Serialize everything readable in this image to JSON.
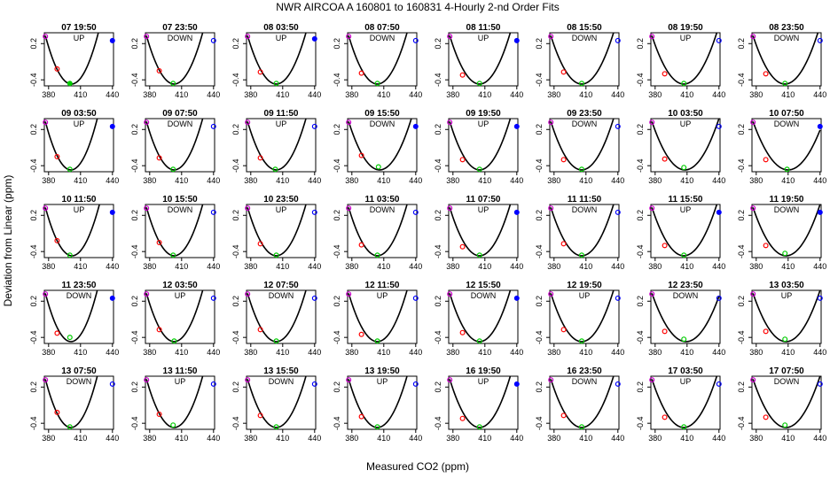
{
  "title": "NWR   AIRCOA A   160801 to 160831   4-Hourly 2-nd Order Fits",
  "xlabel": "Measured CO2 (ppm)",
  "ylabel": "Deviation from Linear (ppm)",
  "colors": {
    "curve": "#000000",
    "p1": "#cc00cc",
    "p2": "#ff0000",
    "p3": "#00cc00",
    "p4": "#0000ff"
  },
  "chart_data": {
    "type": "scatter",
    "layout": {
      "rows": 5,
      "cols": 8
    },
    "xlim": [
      376,
      441
    ],
    "ylim": [
      -0.5,
      0.38
    ],
    "xticks": [
      380,
      410,
      440
    ],
    "xtick_labels": [
      "380",
      "410",
      "440"
    ],
    "yticks": [
      -0.4,
      0.2
    ],
    "ytick_labels": [
      "-0.4",
      "0.2"
    ],
    "panels": [
      {
        "label": "07 19:50",
        "dir": "UP",
        "c": 401.5,
        "pts": [
          [
            377,
            0.32
          ],
          [
            388,
            -0.22
          ],
          [
            400,
            -0.46
          ],
          [
            440,
            0.25
          ]
        ],
        "filled": [
          false,
          false,
          true,
          true
        ]
      },
      {
        "label": "07 23:50",
        "dir": "DOWN",
        "c": 403,
        "pts": [
          [
            377,
            0.32
          ],
          [
            389,
            -0.25
          ],
          [
            402,
            -0.46
          ],
          [
            440,
            0.25
          ]
        ],
        "filled": [
          false,
          false,
          false,
          false
        ]
      },
      {
        "label": "08 03:50",
        "dir": "UP",
        "c": 404,
        "pts": [
          [
            377,
            0.32
          ],
          [
            389,
            -0.27
          ],
          [
            404,
            -0.46
          ],
          [
            440,
            0.28
          ]
        ],
        "filled": [
          false,
          false,
          false,
          true
        ]
      },
      {
        "label": "08 07:50",
        "dir": "DOWN",
        "c": 404,
        "pts": [
          [
            377,
            0.32
          ],
          [
            389,
            -0.29
          ],
          [
            404,
            -0.46
          ],
          [
            440,
            0.25
          ]
        ],
        "filled": [
          false,
          false,
          false,
          false
        ]
      },
      {
        "label": "08 11:50",
        "dir": "UP",
        "c": 405,
        "pts": [
          [
            377,
            0.32
          ],
          [
            389,
            -0.32
          ],
          [
            405,
            -0.46
          ],
          [
            440,
            0.25
          ]
        ],
        "filled": [
          false,
          false,
          false,
          true
        ]
      },
      {
        "label": "08 15:50",
        "dir": "DOWN",
        "c": 406,
        "pts": [
          [
            377,
            0.32
          ],
          [
            389,
            -0.27
          ],
          [
            406,
            -0.46
          ],
          [
            440,
            0.25
          ]
        ],
        "filled": [
          false,
          false,
          false,
          false
        ]
      },
      {
        "label": "08 19:50",
        "dir": "UP",
        "c": 407,
        "pts": [
          [
            377,
            0.32
          ],
          [
            389,
            -0.3
          ],
          [
            407,
            -0.46
          ],
          [
            440,
            0.25
          ]
        ],
        "filled": [
          false,
          false,
          false,
          false
        ]
      },
      {
        "label": "08 23:50",
        "dir": "DOWN",
        "c": 407,
        "pts": [
          [
            377,
            0.32
          ],
          [
            389,
            -0.3
          ],
          [
            407,
            -0.46
          ],
          [
            440,
            0.25
          ]
        ],
        "filled": [
          false,
          false,
          false,
          false
        ]
      },
      {
        "label": "09 03:50",
        "dir": "UP",
        "c": 401,
        "pts": [
          [
            377,
            0.32
          ],
          [
            388,
            -0.25
          ],
          [
            400,
            -0.46
          ],
          [
            440,
            0.25
          ]
        ],
        "filled": [
          false,
          false,
          false,
          true
        ]
      },
      {
        "label": "09 07:50",
        "dir": "DOWN",
        "c": 403,
        "pts": [
          [
            377,
            0.32
          ],
          [
            389,
            -0.27
          ],
          [
            402,
            -0.46
          ],
          [
            440,
            0.25
          ]
        ],
        "filled": [
          false,
          false,
          false,
          false
        ]
      },
      {
        "label": "09 11:50",
        "dir": "UP",
        "c": 404,
        "pts": [
          [
            377,
            0.32
          ],
          [
            389,
            -0.27
          ],
          [
            403,
            -0.46
          ],
          [
            440,
            0.25
          ]
        ],
        "filled": [
          false,
          false,
          false,
          false
        ]
      },
      {
        "label": "09 15:50",
        "dir": "DOWN",
        "c": 406,
        "pts": [
          [
            377,
            0.32
          ],
          [
            389,
            -0.23
          ],
          [
            405,
            -0.42
          ],
          [
            440,
            0.25
          ]
        ],
        "filled": [
          false,
          false,
          false,
          true
        ]
      },
      {
        "label": "09 19:50",
        "dir": "UP",
        "c": 405,
        "pts": [
          [
            377,
            0.32
          ],
          [
            389,
            -0.3
          ],
          [
            405,
            -0.46
          ],
          [
            440,
            0.25
          ]
        ],
        "filled": [
          false,
          false,
          false,
          true
        ]
      },
      {
        "label": "09 23:50",
        "dir": "DOWN",
        "c": 406,
        "pts": [
          [
            377,
            0.32
          ],
          [
            389,
            -0.3
          ],
          [
            406,
            -0.46
          ],
          [
            440,
            0.25
          ]
        ],
        "filled": [
          false,
          false,
          false,
          false
        ]
      },
      {
        "label": "10 03:50",
        "dir": "UP",
        "c": 408,
        "pts": [
          [
            377,
            0.32
          ],
          [
            389,
            -0.29
          ],
          [
            407,
            -0.43
          ],
          [
            440,
            0.25
          ]
        ],
        "filled": [
          false,
          false,
          false,
          false
        ]
      },
      {
        "label": "10 07:50",
        "dir": "DOWN",
        "c": 410,
        "pts": [
          [
            377,
            0.32
          ],
          [
            389,
            -0.3
          ],
          [
            409,
            -0.46
          ],
          [
            440,
            0.25
          ]
        ],
        "filled": [
          false,
          false,
          false,
          true
        ]
      },
      {
        "label": "10 11:50",
        "dir": "UP",
        "c": 402,
        "pts": [
          [
            377,
            0.32
          ],
          [
            388,
            -0.22
          ],
          [
            400,
            -0.46
          ],
          [
            440,
            0.25
          ]
        ],
        "filled": [
          false,
          false,
          false,
          true
        ]
      },
      {
        "label": "10 15:50",
        "dir": "DOWN",
        "c": 403,
        "pts": [
          [
            377,
            0.32
          ],
          [
            389,
            -0.25
          ],
          [
            402,
            -0.46
          ],
          [
            440,
            0.25
          ]
        ],
        "filled": [
          false,
          false,
          false,
          false
        ]
      },
      {
        "label": "10 23:50",
        "dir": "UP",
        "c": 404,
        "pts": [
          [
            377,
            0.32
          ],
          [
            389,
            -0.27
          ],
          [
            404,
            -0.46
          ],
          [
            440,
            0.25
          ]
        ],
        "filled": [
          false,
          false,
          false,
          false
        ]
      },
      {
        "label": "11 03:50",
        "dir": "DOWN",
        "c": 404,
        "pts": [
          [
            377,
            0.32
          ],
          [
            389,
            -0.29
          ],
          [
            404,
            -0.46
          ],
          [
            440,
            0.25
          ]
        ],
        "filled": [
          false,
          false,
          false,
          false
        ]
      },
      {
        "label": "11 07:50",
        "dir": "UP",
        "c": 405,
        "pts": [
          [
            377,
            0.32
          ],
          [
            389,
            -0.32
          ],
          [
            405,
            -0.46
          ],
          [
            440,
            0.25
          ]
        ],
        "filled": [
          false,
          false,
          false,
          true
        ]
      },
      {
        "label": "11 11:50",
        "dir": "DOWN",
        "c": 406,
        "pts": [
          [
            377,
            0.32
          ],
          [
            389,
            -0.27
          ],
          [
            406,
            -0.46
          ],
          [
            440,
            0.25
          ]
        ],
        "filled": [
          false,
          false,
          false,
          false
        ]
      },
      {
        "label": "11 15:50",
        "dir": "UP",
        "c": 407,
        "pts": [
          [
            377,
            0.32
          ],
          [
            389,
            -0.3
          ],
          [
            407,
            -0.46
          ],
          [
            440,
            0.25
          ]
        ],
        "filled": [
          false,
          false,
          false,
          true
        ]
      },
      {
        "label": "11 19:50",
        "dir": "DOWN",
        "c": 408,
        "pts": [
          [
            377,
            0.32
          ],
          [
            389,
            -0.3
          ],
          [
            407,
            -0.43
          ],
          [
            440,
            0.25
          ]
        ],
        "filled": [
          false,
          false,
          false,
          true
        ]
      },
      {
        "label": "11 23:50",
        "dir": "DOWN",
        "c": 401,
        "pts": [
          [
            377,
            0.32
          ],
          [
            388,
            -0.33
          ],
          [
            400,
            -0.4
          ],
          [
            440,
            0.25
          ]
        ],
        "filled": [
          false,
          false,
          false,
          true
        ]
      },
      {
        "label": "12 03:50",
        "dir": "UP",
        "c": 403,
        "pts": [
          [
            377,
            0.32
          ],
          [
            389,
            -0.27
          ],
          [
            403,
            -0.46
          ],
          [
            440,
            0.25
          ]
        ],
        "filled": [
          false,
          false,
          false,
          false
        ]
      },
      {
        "label": "12 07:50",
        "dir": "DOWN",
        "c": 404,
        "pts": [
          [
            377,
            0.32
          ],
          [
            389,
            -0.27
          ],
          [
            404,
            -0.46
          ],
          [
            440,
            0.25
          ]
        ],
        "filled": [
          false,
          false,
          false,
          false
        ]
      },
      {
        "label": "12 11:50",
        "dir": "UP",
        "c": 404,
        "pts": [
          [
            377,
            0.32
          ],
          [
            389,
            -0.35
          ],
          [
            404,
            -0.46
          ],
          [
            440,
            0.25
          ]
        ],
        "filled": [
          false,
          false,
          false,
          false
        ]
      },
      {
        "label": "12 15:50",
        "dir": "DOWN",
        "c": 405,
        "pts": [
          [
            377,
            0.32
          ],
          [
            389,
            -0.32
          ],
          [
            405,
            -0.46
          ],
          [
            440,
            0.25
          ]
        ],
        "filled": [
          false,
          false,
          false,
          true
        ]
      },
      {
        "label": "12 19:50",
        "dir": "UP",
        "c": 406,
        "pts": [
          [
            377,
            0.32
          ],
          [
            389,
            -0.27
          ],
          [
            406,
            -0.46
          ],
          [
            440,
            0.25
          ]
        ],
        "filled": [
          false,
          false,
          false,
          false
        ]
      },
      {
        "label": "12 23:50",
        "dir": "DOWN",
        "c": 409,
        "pts": [
          [
            377,
            0.32
          ],
          [
            389,
            -0.3
          ],
          [
            407,
            -0.43
          ],
          [
            440,
            0.25
          ]
        ],
        "filled": [
          false,
          false,
          false,
          false
        ]
      },
      {
        "label": "13 03:50",
        "dir": "UP",
        "c": 408,
        "pts": [
          [
            377,
            0.32
          ],
          [
            389,
            -0.3
          ],
          [
            407,
            -0.43
          ],
          [
            440,
            0.25
          ]
        ],
        "filled": [
          false,
          false,
          false,
          false
        ]
      },
      {
        "label": "13 07:50",
        "dir": "DOWN",
        "c": 401,
        "pts": [
          [
            377,
            0.32
          ],
          [
            388,
            -0.22
          ],
          [
            400,
            -0.46
          ],
          [
            440,
            0.25
          ]
        ],
        "filled": [
          false,
          false,
          false,
          false
        ]
      },
      {
        "label": "13 11:50",
        "dir": "UP",
        "c": 403,
        "pts": [
          [
            377,
            0.32
          ],
          [
            389,
            -0.25
          ],
          [
            402,
            -0.43
          ],
          [
            440,
            0.25
          ]
        ],
        "filled": [
          false,
          false,
          false,
          false
        ]
      },
      {
        "label": "13 15:50",
        "dir": "DOWN",
        "c": 404,
        "pts": [
          [
            377,
            0.32
          ],
          [
            389,
            -0.27
          ],
          [
            404,
            -0.46
          ],
          [
            440,
            0.25
          ]
        ],
        "filled": [
          false,
          false,
          false,
          false
        ]
      },
      {
        "label": "13 19:50",
        "dir": "UP",
        "c": 404,
        "pts": [
          [
            377,
            0.32
          ],
          [
            389,
            -0.29
          ],
          [
            404,
            -0.46
          ],
          [
            440,
            0.25
          ]
        ],
        "filled": [
          false,
          false,
          false,
          false
        ]
      },
      {
        "label": "16 19:50",
        "dir": "UP",
        "c": 405,
        "pts": [
          [
            377,
            0.32
          ],
          [
            389,
            -0.32
          ],
          [
            405,
            -0.46
          ],
          [
            440,
            0.25
          ]
        ],
        "filled": [
          false,
          false,
          false,
          true
        ]
      },
      {
        "label": "16 23:50",
        "dir": "DOWN",
        "c": 406,
        "pts": [
          [
            377,
            0.32
          ],
          [
            389,
            -0.27
          ],
          [
            406,
            -0.46
          ],
          [
            440,
            0.25
          ]
        ],
        "filled": [
          false,
          false,
          false,
          false
        ]
      },
      {
        "label": "17 03:50",
        "dir": "UP",
        "c": 407,
        "pts": [
          [
            377,
            0.32
          ],
          [
            389,
            -0.3
          ],
          [
            407,
            -0.46
          ],
          [
            440,
            0.25
          ]
        ],
        "filled": [
          false,
          false,
          false,
          false
        ]
      },
      {
        "label": "17 07:50",
        "dir": "DOWN",
        "c": 408,
        "pts": [
          [
            377,
            0.32
          ],
          [
            389,
            -0.3
          ],
          [
            407,
            -0.43
          ],
          [
            440,
            0.25
          ]
        ],
        "filled": [
          false,
          false,
          false,
          false
        ]
      }
    ]
  }
}
